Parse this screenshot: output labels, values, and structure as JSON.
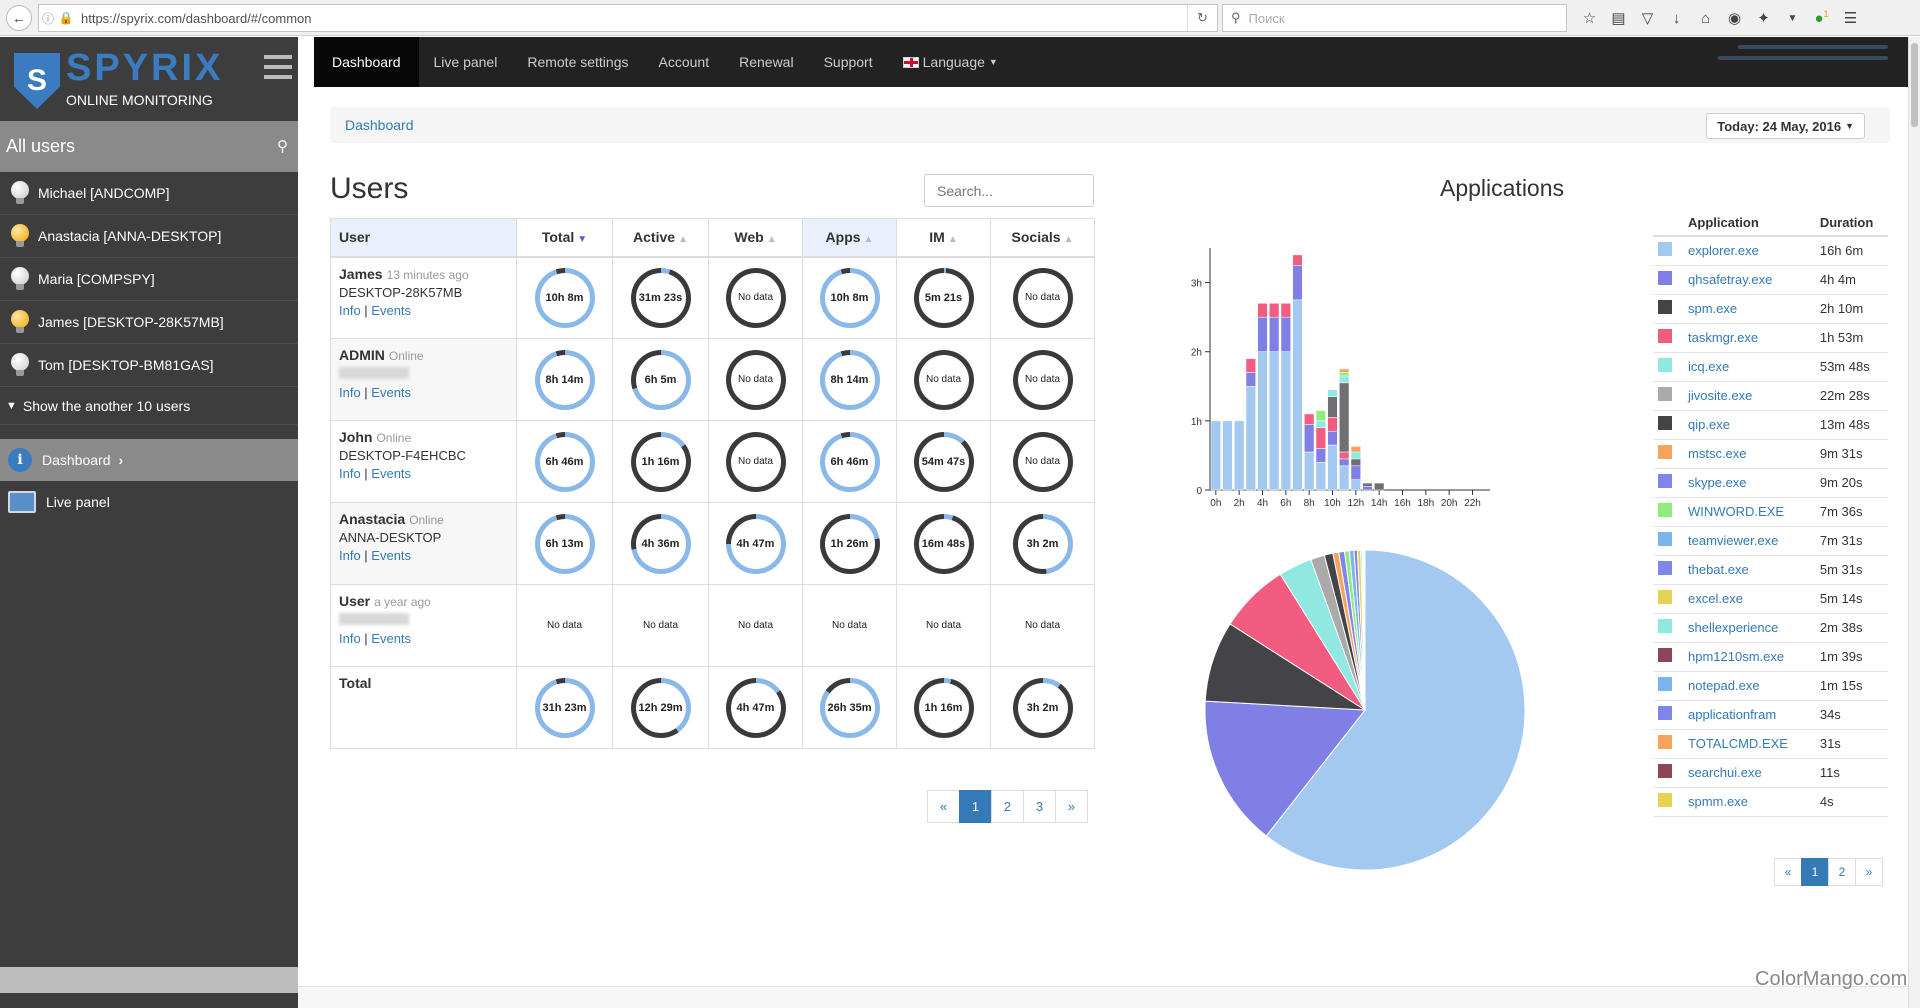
{
  "browser": {
    "url": "https://spyrix.com/dashboard/#/common",
    "search_placeholder": "Поиск",
    "ext_badge": "1"
  },
  "sidebar": {
    "brand": "SPYRIX",
    "tagline": "ONLINE MONITORING",
    "all_users": "All users",
    "users": [
      {
        "label": "Michael [ANDCOMP]",
        "online": false
      },
      {
        "label": "Anastacia [ANNA-DESKTOP]",
        "online": true
      },
      {
        "label": "Maria [COMPSPY]",
        "online": false
      },
      {
        "label": "James [DESKTOP-28K57MB]",
        "online": true
      },
      {
        "label": "Tom [DESKTOP-BM81GAS]",
        "online": false
      }
    ],
    "show_more": "Show the another 10 users",
    "nav": [
      {
        "label": "Dashboard",
        "icon": "info-icon",
        "active": true
      },
      {
        "label": "Live panel",
        "icon": "monitor-icon",
        "active": false
      }
    ]
  },
  "topnav": {
    "items": [
      "Dashboard",
      "Live panel",
      "Remote settings",
      "Account",
      "Renewal",
      "Support"
    ],
    "language": "Language"
  },
  "breadcrumb": {
    "current": "Dashboard",
    "date_button": "Today: 24 May, 2016"
  },
  "users_panel": {
    "title": "Users",
    "search_placeholder": "Search...",
    "columns": [
      "User",
      "Total",
      "Active",
      "Web",
      "Apps",
      "IM",
      "Socials"
    ],
    "sorted_column": "Total",
    "info_label": "Info",
    "events_label": "Events",
    "rows": [
      {
        "name": "James",
        "status": "13 minutes ago",
        "pc": "DESKTOP-28K57MB",
        "cells": [
          {
            "v": "10h 8m",
            "f": 0.95,
            "c": "#8ab9e9"
          },
          {
            "v": "31m 23s",
            "f": 0.05,
            "c": "#8ab9e9"
          },
          {
            "v": "No data",
            "f": 0,
            "c": "#8ab9e9"
          },
          {
            "v": "10h 8m",
            "f": 0.95,
            "c": "#8ab9e9"
          },
          {
            "v": "5m 21s",
            "f": 0.01,
            "c": "#8ab9e9"
          },
          {
            "v": "No data",
            "f": 0,
            "c": "#8ab9e9"
          }
        ]
      },
      {
        "name": "ADMIN",
        "status": "Online",
        "pc": "",
        "cells": [
          {
            "v": "8h 14m",
            "f": 0.95,
            "c": "#8ab9e9"
          },
          {
            "v": "6h 5m",
            "f": 0.7,
            "c": "#8ab9e9"
          },
          {
            "v": "No data",
            "f": 0,
            "c": "#8ab9e9"
          },
          {
            "v": "8h 14m",
            "f": 0.95,
            "c": "#8ab9e9"
          },
          {
            "v": "No data",
            "f": 0,
            "c": "#8ab9e9"
          },
          {
            "v": "No data",
            "f": 0,
            "c": "#8ab9e9"
          }
        ]
      },
      {
        "name": "John",
        "status": "Online",
        "pc": "DESKTOP-F4EHCBC",
        "cells": [
          {
            "v": "6h 46m",
            "f": 0.95,
            "c": "#8ab9e9"
          },
          {
            "v": "1h 16m",
            "f": 0.15,
            "c": "#8ab9e9"
          },
          {
            "v": "No data",
            "f": 0,
            "c": "#8ab9e9"
          },
          {
            "v": "6h 46m",
            "f": 0.95,
            "c": "#8ab9e9"
          },
          {
            "v": "54m 47s",
            "f": 0.12,
            "c": "#8ab9e9"
          },
          {
            "v": "No data",
            "f": 0,
            "c": "#8ab9e9"
          }
        ]
      },
      {
        "name": "Anastacia",
        "status": "Online",
        "pc": "ANNA-DESKTOP",
        "cells": [
          {
            "v": "6h 13m",
            "f": 0.95,
            "c": "#8ab9e9"
          },
          {
            "v": "4h 36m",
            "f": 0.72,
            "c": "#8ab9e9"
          },
          {
            "v": "4h 47m",
            "f": 0.75,
            "c": "#8ab9e9"
          },
          {
            "v": "1h 26m",
            "f": 0.22,
            "c": "#8ab9e9"
          },
          {
            "v": "16m 48s",
            "f": 0.05,
            "c": "#8ab9e9"
          },
          {
            "v": "3h 2m",
            "f": 0.48,
            "c": "#8ab9e9"
          }
        ]
      },
      {
        "name": "User",
        "status": "a year ago",
        "pc": "",
        "cells": [
          {
            "v": "No data",
            "f": -1,
            "c": ""
          },
          {
            "v": "No data",
            "f": -1,
            "c": ""
          },
          {
            "v": "No data",
            "f": -1,
            "c": ""
          },
          {
            "v": "No data",
            "f": -1,
            "c": ""
          },
          {
            "v": "No data",
            "f": -1,
            "c": ""
          },
          {
            "v": "No data",
            "f": -1,
            "c": ""
          }
        ]
      }
    ],
    "total": {
      "label": "Total",
      "cells": [
        {
          "v": "31h 23m",
          "f": 0.95,
          "c": "#8ab9e9"
        },
        {
          "v": "12h 29m",
          "f": 0.4,
          "c": "#8ab9e9"
        },
        {
          "v": "4h 47m",
          "f": 0.15,
          "c": "#8ab9e9"
        },
        {
          "v": "26h 35m",
          "f": 0.85,
          "c": "#8ab9e9"
        },
        {
          "v": "1h 16m",
          "f": 0.04,
          "c": "#8ab9e9"
        },
        {
          "v": "3h 2m",
          "f": 0.1,
          "c": "#8ab9e9"
        }
      ]
    },
    "pager": [
      "«",
      "1",
      "2",
      "3",
      "»"
    ]
  },
  "applications": {
    "title": "Applications",
    "columns": [
      "Application",
      "Duration"
    ],
    "rows": [
      {
        "name": "explorer.exe",
        "dur": "16h 6m",
        "color": "#a3c9f1"
      },
      {
        "name": "qhsafetray.exe",
        "dur": "4h 4m",
        "color": "#7f7fe6"
      },
      {
        "name": "spm.exe",
        "dur": "2h 10m",
        "color": "#434348"
      },
      {
        "name": "taskmgr.exe",
        "dur": "1h 53m",
        "color": "#f15c80"
      },
      {
        "name": "icq.exe",
        "dur": "53m 48s",
        "color": "#91e8e1"
      },
      {
        "name": "jivosite.exe",
        "dur": "22m 28s",
        "color": "#aaaaaa"
      },
      {
        "name": "qip.exe",
        "dur": "13m 48s",
        "color": "#434348"
      },
      {
        "name": "mstsc.exe",
        "dur": "9m 31s",
        "color": "#f7a35c"
      },
      {
        "name": "skype.exe",
        "dur": "9m 20s",
        "color": "#8085e9"
      },
      {
        "name": "WINWORD.EXE",
        "dur": "7m 36s",
        "color": "#90ed7d"
      },
      {
        "name": "teamviewer.exe",
        "dur": "7m 31s",
        "color": "#7cb5ec"
      },
      {
        "name": "thebat.exe",
        "dur": "5m 31s",
        "color": "#8085e9"
      },
      {
        "name": "excel.exe",
        "dur": "5m 14s",
        "color": "#e4d354"
      },
      {
        "name": "shellexperience",
        "dur": "2m 38s",
        "color": "#91e8e1"
      },
      {
        "name": "hpm1210sm.exe",
        "dur": "1m 39s",
        "color": "#8d4653"
      },
      {
        "name": "notepad.exe",
        "dur": "1m 15s",
        "color": "#7cb5ec"
      },
      {
        "name": "applicationfram",
        "dur": "34s",
        "color": "#8085e9"
      },
      {
        "name": "TOTALCMD.EXE",
        "dur": "31s",
        "color": "#f7a35c"
      },
      {
        "name": "searchui.exe",
        "dur": "11s",
        "color": "#8d4653"
      },
      {
        "name": "spmm.exe",
        "dur": "4s",
        "color": "#e4d354"
      }
    ],
    "pager": [
      "«",
      "1",
      "2",
      "»"
    ]
  },
  "chart_data": [
    {
      "type": "bar",
      "stacked": true,
      "ylabel": "",
      "x_ticks": [
        "0h",
        "2h",
        "4h",
        "6h",
        "8h",
        "10h",
        "12h",
        "14h",
        "16h",
        "18h",
        "20h",
        "22h"
      ],
      "y_ticks": [
        "0",
        "1h",
        "2h",
        "3h"
      ],
      "ylim": [
        0,
        3.5
      ],
      "categories": [
        "0",
        "1",
        "2",
        "3",
        "4",
        "5",
        "6",
        "7",
        "8",
        "9",
        "10",
        "11",
        "12",
        "13",
        "14",
        "15",
        "16",
        "17",
        "18",
        "19",
        "20",
        "21",
        "22",
        "23"
      ],
      "series": [
        {
          "color": "#a3c9f1",
          "values": [
            1,
            1,
            1,
            1.5,
            2,
            2,
            2,
            2.75,
            0.55,
            0.4,
            0.65,
            0.35,
            0.15,
            0,
            0,
            0,
            0,
            0,
            0,
            0,
            0,
            0,
            0,
            0
          ]
        },
        {
          "color": "#7f7fe6",
          "values": [
            0,
            0,
            0,
            0.2,
            0.5,
            0.5,
            0.5,
            0.5,
            0.4,
            0.2,
            0.2,
            0.1,
            0.2,
            0.05,
            0,
            0,
            0,
            0,
            0,
            0,
            0,
            0,
            0,
            0
          ]
        },
        {
          "color": "#f15c80",
          "values": [
            0,
            0,
            0,
            0.2,
            0.2,
            0.2,
            0.2,
            0.15,
            0.15,
            0.3,
            0.2,
            0.1,
            0,
            0,
            0,
            0,
            0,
            0,
            0,
            0,
            0,
            0,
            0,
            0
          ]
        },
        {
          "color": "#6f6f74",
          "values": [
            0,
            0,
            0,
            0,
            0,
            0,
            0,
            0,
            0,
            0,
            0.3,
            1.0,
            0.1,
            0.05,
            0.1,
            0,
            0,
            0,
            0,
            0,
            0,
            0,
            0,
            0
          ]
        },
        {
          "color": "#91e8e1",
          "values": [
            0,
            0,
            0,
            0,
            0,
            0,
            0,
            0,
            0,
            0.1,
            0.1,
            0.1,
            0.1,
            0,
            0,
            0,
            0,
            0,
            0,
            0,
            0,
            0,
            0,
            0
          ]
        },
        {
          "color": "#90ed7d",
          "values": [
            0,
            0,
            0,
            0,
            0,
            0,
            0,
            0,
            0,
            0.15,
            0,
            0.05,
            0,
            0,
            0,
            0,
            0,
            0,
            0,
            0,
            0,
            0,
            0,
            0
          ]
        },
        {
          "color": "#f7a35c",
          "values": [
            0,
            0,
            0,
            0,
            0,
            0,
            0,
            0,
            0,
            0,
            0,
            0.05,
            0.08,
            0,
            0,
            0,
            0,
            0,
            0,
            0,
            0,
            0,
            0,
            0
          ]
        }
      ]
    },
    {
      "type": "pie",
      "labels": [
        "explorer.exe",
        "qhsafetray.exe",
        "spm.exe",
        "taskmgr.exe",
        "icq.exe",
        "jivosite.exe",
        "qip.exe",
        "mstsc.exe",
        "skype.exe",
        "WINWORD.EXE",
        "teamviewer.exe",
        "thebat.exe",
        "excel.exe",
        "shellexperience",
        "hpm1210sm.exe",
        "notepad.exe",
        "applicationfram",
        "TOTALCMD.EXE",
        "searchui.exe",
        "spmm.exe"
      ],
      "values_minutes": [
        966,
        244,
        130,
        113,
        53.8,
        22.5,
        13.8,
        9.5,
        9.3,
        7.6,
        7.5,
        5.5,
        5.2,
        2.6,
        1.65,
        1.25,
        0.57,
        0.52,
        0.18,
        0.07
      ]
    }
  ]
}
